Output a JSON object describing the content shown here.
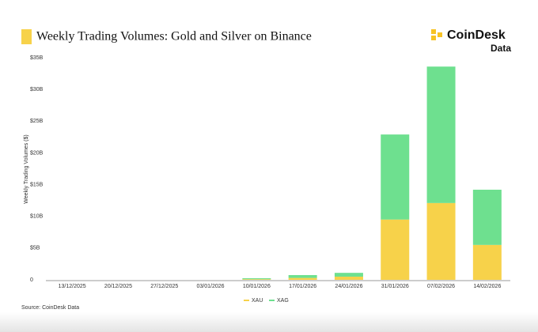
{
  "logo": {
    "name": "CoinDesk",
    "sub": "Data"
  },
  "chart_data": {
    "type": "bar",
    "stacked": true,
    "title": "Weekly Trading Volumes: Gold and Silver on Binance",
    "y_label": "Weekly Trading Volumes ($)",
    "source": "Source: CoinDesk Data",
    "categories": [
      "13/12/2025",
      "20/12/2025",
      "27/12/2025",
      "03/01/2026",
      "10/01/2026",
      "17/01/2026",
      "24/01/2026",
      "31/01/2026",
      "07/02/2026",
      "14/02/2026"
    ],
    "series": [
      {
        "name": "XAU",
        "color": "#f7d24a",
        "values": [
          0,
          0,
          0,
          0,
          0.1,
          0.3,
          0.5,
          9.5,
          12.1,
          5.5
        ]
      },
      {
        "name": "XAG",
        "color": "#6ee08f",
        "values": [
          0,
          0,
          0,
          0,
          0.15,
          0.45,
          0.6,
          13.4,
          21.5,
          8.7
        ]
      }
    ],
    "ylim": [
      0,
      35
    ],
    "yticks": [
      0,
      {
        "value": 5,
        "label": "$5B"
      },
      {
        "value": 10,
        "label": "$10B"
      },
      {
        "value": 15,
        "label": "$15B"
      },
      {
        "value": 20,
        "label": "$20B"
      },
      {
        "value": 25,
        "label": "$25B"
      },
      {
        "value": 30,
        "label": "$30B"
      },
      {
        "value": 35,
        "label": "$35B"
      }
    ],
    "grid": false,
    "legend": "bottom"
  }
}
